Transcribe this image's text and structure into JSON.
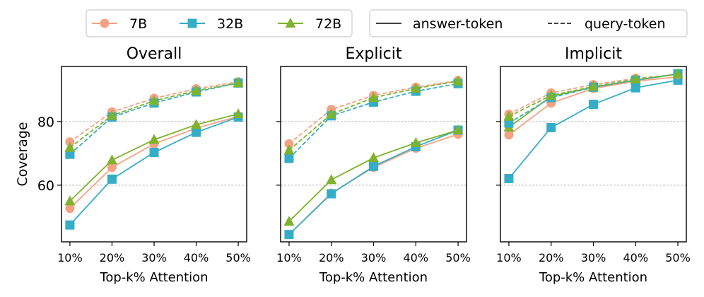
{
  "chart_data": [
    {
      "type": "line",
      "title": "Overall",
      "xlabel": "Top-k% Attention",
      "ylabel": "Coverage",
      "categories": [
        "10%",
        "20%",
        "30%",
        "40%",
        "50%"
      ],
      "x": [
        10,
        20,
        30,
        40,
        50
      ],
      "xlim": [
        8,
        52
      ],
      "ylim": [
        42.2,
        97.3
      ],
      "yticks": [
        60,
        80
      ],
      "grid": "y-dashed",
      "series": [
        {
          "name": "7B",
          "style": "answer-token",
          "values": [
            52.7,
            65.6,
            73.0,
            77.9,
            81.6
          ]
        },
        {
          "name": "32B",
          "style": "answer-token",
          "values": [
            47.5,
            61.9,
            70.3,
            76.6,
            81.4
          ]
        },
        {
          "name": "72B",
          "style": "answer-token",
          "values": [
            55.0,
            67.9,
            74.3,
            79.0,
            82.4
          ]
        },
        {
          "name": "7B",
          "style": "query-token",
          "values": [
            73.6,
            83.0,
            87.3,
            90.3,
            92.5
          ]
        },
        {
          "name": "32B",
          "style": "query-token",
          "values": [
            69.7,
            81.4,
            85.8,
            89.3,
            92.1
          ]
        },
        {
          "name": "72B",
          "style": "query-token",
          "values": [
            71.8,
            81.9,
            86.5,
            89.7,
            92.1
          ]
        }
      ]
    },
    {
      "type": "line",
      "title": "Explicit",
      "xlabel": "Top-k% Attention",
      "categories": [
        "10%",
        "20%",
        "30%",
        "40%",
        "50%"
      ],
      "x": [
        10,
        20,
        30,
        40,
        50
      ],
      "xlim": [
        8,
        52
      ],
      "ylim": [
        42.2,
        97.3
      ],
      "yticks": [
        60,
        80
      ],
      "grid": "y-dashed",
      "series": [
        {
          "name": "7B",
          "style": "answer-token",
          "values": [
            44.5,
            57.5,
            65.6,
            71.6,
            76.0
          ]
        },
        {
          "name": "32B",
          "style": "answer-token",
          "values": [
            44.5,
            57.3,
            65.9,
            72.1,
            77.3
          ]
        },
        {
          "name": "72B",
          "style": "answer-token",
          "values": [
            48.6,
            61.7,
            68.6,
            73.3,
            77.3
          ]
        },
        {
          "name": "7B",
          "style": "query-token",
          "values": [
            73.0,
            83.8,
            88.2,
            90.8,
            92.9
          ]
        },
        {
          "name": "32B",
          "style": "query-token",
          "values": [
            68.4,
            81.8,
            86.1,
            89.5,
            91.9
          ]
        },
        {
          "name": "72B",
          "style": "query-token",
          "values": [
            71.0,
            82.3,
            87.5,
            90.4,
            92.7
          ]
        }
      ]
    },
    {
      "type": "line",
      "title": "Implicit",
      "xlabel": "Top-k% Attention",
      "categories": [
        "10%",
        "20%",
        "30%",
        "40%",
        "50%"
      ],
      "x": [
        10,
        20,
        30,
        40,
        50
      ],
      "xlim": [
        8,
        52
      ],
      "ylim": [
        42.2,
        97.3
      ],
      "yticks": [
        60,
        80
      ],
      "grid": "y-dashed",
      "series": [
        {
          "name": "7B",
          "style": "answer-token",
          "values": [
            75.8,
            85.8,
            90.4,
            92.7,
            94.0
          ]
        },
        {
          "name": "32B",
          "style": "answer-token",
          "values": [
            62.1,
            78.1,
            85.4,
            90.6,
            93.0
          ]
        },
        {
          "name": "72B",
          "style": "answer-token",
          "values": [
            78.2,
            87.9,
            90.8,
            93.0,
            94.9
          ]
        },
        {
          "name": "7B",
          "style": "query-token",
          "values": [
            82.3,
            89.0,
            91.6,
            93.6,
            94.7
          ]
        },
        {
          "name": "32B",
          "style": "query-token",
          "values": [
            79.5,
            87.5,
            90.8,
            93.0,
            95.0
          ]
        },
        {
          "name": "72B",
          "style": "query-token",
          "values": [
            81.6,
            88.2,
            91.0,
            93.3,
            94.9
          ]
        }
      ]
    }
  ],
  "legend_models": [
    {
      "label": "7B",
      "color": "#F4A284",
      "marker": "circle"
    },
    {
      "label": "32B",
      "color": "#36ADC7",
      "marker": "square"
    },
    {
      "label": "72B",
      "color": "#7EB32B",
      "marker": "triangle"
    }
  ],
  "legend_styles": [
    {
      "label": "answer-token",
      "dash": "solid"
    },
    {
      "label": "query-token",
      "dash": "dashed"
    }
  ],
  "ytick_labels": [
    "60",
    "80"
  ]
}
